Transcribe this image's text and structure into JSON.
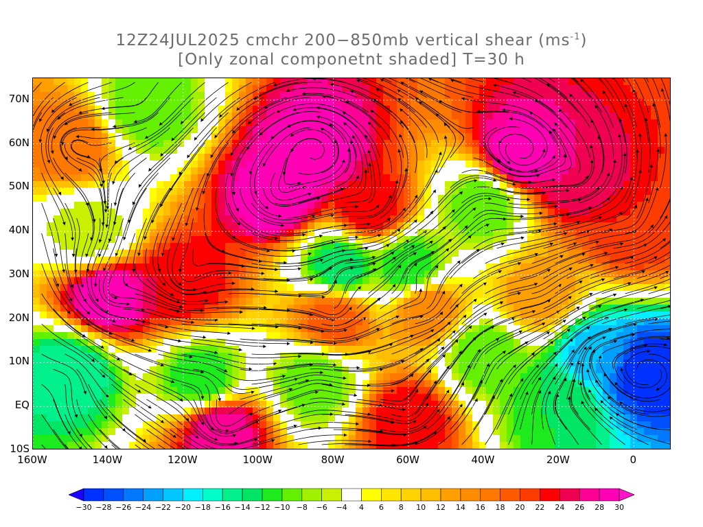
{
  "title": {
    "line1_prefix": "12Z24JUL2025 cmchr 200−850mb vertical shear (ms",
    "line1_sup": "-1",
    "line1_suffix": ")",
    "line2": "[Only zonal componetnt shaded] T=30 h"
  },
  "map": {
    "lon_range": [
      -160,
      10
    ],
    "lat_range": [
      -10,
      75
    ],
    "lat_ticks": [
      {
        "value": 70,
        "label": "70N"
      },
      {
        "value": 60,
        "label": "60N"
      },
      {
        "value": 50,
        "label": "50N"
      },
      {
        "value": 40,
        "label": "40N"
      },
      {
        "value": 30,
        "label": "30N"
      },
      {
        "value": 20,
        "label": "20N"
      },
      {
        "value": 10,
        "label": "10N"
      },
      {
        "value": 0,
        "label": "EQ"
      },
      {
        "value": -10,
        "label": "10S"
      }
    ],
    "lon_ticks": [
      {
        "value": -160,
        "label": "160W"
      },
      {
        "value": -140,
        "label": "140W"
      },
      {
        "value": -120,
        "label": "120W"
      },
      {
        "value": -100,
        "label": "100W"
      },
      {
        "value": -80,
        "label": "80W"
      },
      {
        "value": -60,
        "label": "60W"
      },
      {
        "value": -40,
        "label": "40W"
      },
      {
        "value": -20,
        "label": "20W"
      },
      {
        "value": 0,
        "label": "0"
      }
    ],
    "shear_features": [
      {
        "lon": -140,
        "lat": 25,
        "value": 30
      },
      {
        "lon": -120,
        "lat": 28,
        "value": 24
      },
      {
        "lon": -95,
        "lat": 48,
        "value": 30
      },
      {
        "lon": -85,
        "lat": 58,
        "value": 30
      },
      {
        "lon": -70,
        "lat": 45,
        "value": 24
      },
      {
        "lon": -30,
        "lat": 57,
        "value": 30
      },
      {
        "lon": -15,
        "lat": 52,
        "value": 26
      },
      {
        "lon": 0,
        "lat": 40,
        "value": 22
      },
      {
        "lon": -80,
        "lat": 20,
        "value": 20
      },
      {
        "lon": -55,
        "lat": 22,
        "value": 16
      },
      {
        "lon": -110,
        "lat": -5,
        "value": 28
      },
      {
        "lon": -60,
        "lat": -3,
        "value": 24
      },
      {
        "lon": -25,
        "lat": 25,
        "value": 14
      },
      {
        "lon": -150,
        "lat": 60,
        "value": 18
      },
      {
        "lon": -150,
        "lat": 8,
        "value": -16
      },
      {
        "lon": -115,
        "lat": 6,
        "value": -12
      },
      {
        "lon": -85,
        "lat": 6,
        "value": -10
      },
      {
        "lon": -78,
        "lat": 32,
        "value": -14
      },
      {
        "lon": -60,
        "lat": 32,
        "value": -12
      },
      {
        "lon": -40,
        "lat": 12,
        "value": -10
      },
      {
        "lon": -10,
        "lat": 12,
        "value": -22
      },
      {
        "lon": 3,
        "lat": 8,
        "value": -30
      },
      {
        "lon": -20,
        "lat": 0,
        "value": -12
      },
      {
        "lon": -130,
        "lat": 68,
        "value": -10
      },
      {
        "lon": -40,
        "lat": 46,
        "value": -10
      },
      {
        "lon": -145,
        "lat": 40,
        "value": -6
      }
    ]
  },
  "colorbar": {
    "levels": [
      -30,
      -28,
      -26,
      -24,
      -22,
      -20,
      -18,
      -16,
      -14,
      -12,
      -10,
      -8,
      -6,
      -4,
      4,
      6,
      8,
      10,
      12,
      14,
      16,
      18,
      20,
      22,
      24,
      26,
      28,
      30
    ],
    "labels": [
      "−30",
      "−28",
      "−26",
      "−24",
      "−22",
      "−20",
      "−18",
      "−16",
      "−14",
      "−12",
      "−10",
      "−8",
      "−6",
      "−4",
      "4",
      "6",
      "8",
      "10",
      "12",
      "14",
      "16",
      "18",
      "20",
      "22",
      "24",
      "26",
      "28",
      "30"
    ],
    "colors": [
      "#1e00ff",
      "#0032ff",
      "#0050ff",
      "#0078ff",
      "#00a0ff",
      "#00c8ff",
      "#00f0ff",
      "#00ffc8",
      "#00f08c",
      "#00e664",
      "#1eeb1e",
      "#64f000",
      "#a0f000",
      "#c8f000",
      "#ffffff",
      "#ffff00",
      "#ffe600",
      "#ffd200",
      "#ffbe00",
      "#ffa000",
      "#ff8c00",
      "#ff7800",
      "#ff5a00",
      "#ff3c00",
      "#ff0000",
      "#f00050",
      "#ff0096",
      "#ff00b4",
      "#ff14c8"
    ]
  }
}
